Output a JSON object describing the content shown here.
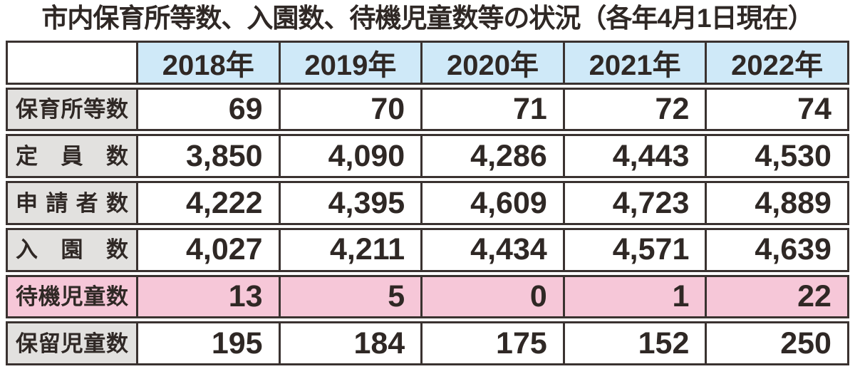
{
  "title": "市内保育所等数、入園数、待機児童数等の状況（各年4月1日現在）",
  "colors": {
    "header_bg": "#cfe9f8",
    "label_bg": "#e2e1df",
    "highlight_bg": "#f6c7d8",
    "border": "#3a3230",
    "text": "#2f2825",
    "background": "#ffffff"
  },
  "chart_data": {
    "type": "table",
    "title": "市内保育所等数、入園数、待機児童数等の状況（各年4月1日現在）",
    "categories": [
      "2018年",
      "2019年",
      "2020年",
      "2021年",
      "2022年"
    ],
    "series": [
      {
        "name": "保育所等数",
        "values": [
          69,
          70,
          71,
          72,
          74
        ]
      },
      {
        "name": "定員数",
        "values": [
          3850,
          4090,
          4286,
          4443,
          4530
        ]
      },
      {
        "name": "申請者数",
        "values": [
          4222,
          4395,
          4609,
          4723,
          4889
        ]
      },
      {
        "name": "入園数",
        "values": [
          4027,
          4211,
          4434,
          4571,
          4639
        ]
      },
      {
        "name": "待機児童数",
        "values": [
          13,
          5,
          0,
          1,
          22
        ],
        "highlighted": true
      },
      {
        "name": "保留児童数",
        "values": [
          195,
          184,
          175,
          152,
          250
        ]
      }
    ],
    "layout": {
      "highlight_row": "待機児童数",
      "header_fill": "light-blue",
      "label_fill": "gray",
      "highlight_fill": "pink"
    }
  },
  "table": {
    "year_headers": [
      "2018年",
      "2019年",
      "2020年",
      "2021年",
      "2022年"
    ],
    "rows": [
      {
        "label": "保育所等数",
        "values": [
          "69",
          "70",
          "71",
          "72",
          "74"
        ]
      },
      {
        "label": "定員数",
        "values": [
          "3,850",
          "4,090",
          "4,286",
          "4,443",
          "4,530"
        ]
      },
      {
        "label": "申請者数",
        "values": [
          "4,222",
          "4,395",
          "4,609",
          "4,723",
          "4,889"
        ]
      },
      {
        "label": "入園数",
        "values": [
          "4,027",
          "4,211",
          "4,434",
          "4,571",
          "4,639"
        ]
      },
      {
        "label": "待機児童数",
        "values": [
          "13",
          "5",
          "0",
          "1",
          "22"
        ]
      },
      {
        "label": "保留児童数",
        "values": [
          "195",
          "184",
          "175",
          "152",
          "250"
        ]
      }
    ]
  }
}
